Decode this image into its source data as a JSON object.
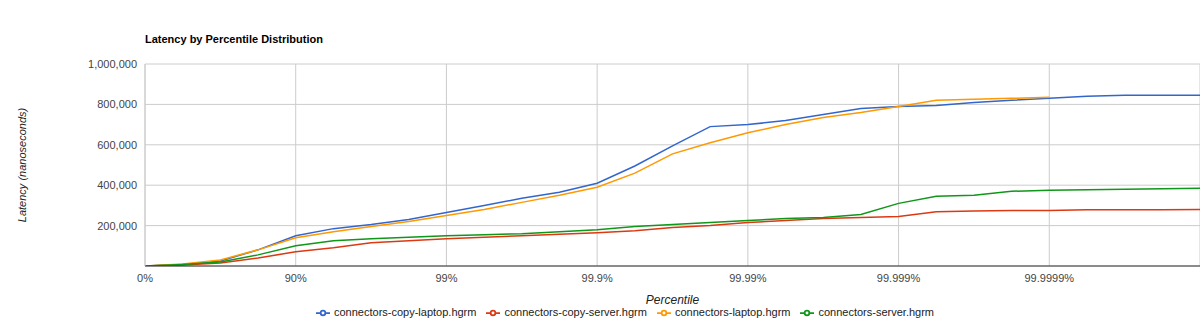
{
  "chart_data": {
    "type": "line",
    "title": "Latency by Percentile Distribution",
    "x_label": "Percentile",
    "y_label": "Latency (nanoseconds)",
    "x": [
      0,
      43.77,
      68.38,
      82.22,
      90,
      94.38,
      96.84,
      98.22,
      99,
      99.438,
      99.684,
      99.822,
      99.9,
      99.9438,
      99.9684,
      99.9822,
      99.99,
      99.99438,
      99.99684,
      99.99822,
      99.999,
      99.999438,
      99.999684,
      99.999822,
      99.9999,
      99.9999438,
      99.9999684,
      99.9999822,
      99.99999
    ],
    "series": [
      {
        "name": "connectors-copy-laptop.hgrm",
        "color": "#3366cc",
        "values": [
          0,
          8000,
          25000,
          80000,
          150000,
          185000,
          205000,
          230000,
          265000,
          300000,
          335000,
          365000,
          410000,
          495000,
          595000,
          690000,
          700000,
          720000,
          750000,
          780000,
          790000,
          795000,
          810000,
          820000,
          830000,
          840000,
          845000,
          845000,
          845000
        ]
      },
      {
        "name": "connectors-copy-server.hgrm",
        "color": "#dc3912",
        "values": [
          0,
          5000,
          15000,
          40000,
          70000,
          90000,
          115000,
          125000,
          135000,
          142000,
          150000,
          157000,
          165000,
          175000,
          190000,
          200000,
          215000,
          225000,
          235000,
          240000,
          245000,
          268000,
          272000,
          275000,
          275000,
          278000,
          278000,
          278000,
          280000
        ]
      },
      {
        "name": "connectors-laptop.hgrm",
        "color": "#ff9900",
        "values": [
          0,
          10000,
          30000,
          80000,
          140000,
          170000,
          195000,
          220000,
          250000,
          280000,
          315000,
          350000,
          390000,
          460000,
          555000,
          610000,
          660000,
          700000,
          735000,
          760000,
          790000,
          820000,
          825000,
          830000,
          835000,
          null,
          null,
          null,
          null
        ]
      },
      {
        "name": "connectors-server.hgrm",
        "color": "#109618",
        "values": [
          0,
          8000,
          20000,
          55000,
          100000,
          125000,
          135000,
          142000,
          150000,
          155000,
          160000,
          170000,
          180000,
          195000,
          205000,
          215000,
          225000,
          235000,
          240000,
          255000,
          310000,
          345000,
          350000,
          370000,
          375000,
          378000,
          380000,
          382000,
          385000
        ]
      }
    ],
    "xlim": [
      0,
      99.99999
    ],
    "xticks": [
      {
        "value": 0,
        "label": "0%"
      },
      {
        "value": 90,
        "label": "90%"
      },
      {
        "value": 99,
        "label": "99%"
      },
      {
        "value": 99.9,
        "label": "99.9%"
      },
      {
        "value": 99.99,
        "label": "99.99%"
      },
      {
        "value": 99.999,
        "label": "99.999%"
      },
      {
        "value": 99.9999,
        "label": "99.9999%"
      }
    ],
    "ylim": [
      0,
      1000000
    ],
    "yticks": [
      0,
      {
        "value": 200000,
        "label": "200,000"
      },
      {
        "value": 400000,
        "label": "400,000"
      },
      {
        "value": 600000,
        "label": "600,000"
      },
      {
        "value": 800000,
        "label": "800,000"
      },
      {
        "value": 1000000,
        "label": "1,000,000"
      }
    ],
    "grid": true,
    "legend": "bottom"
  }
}
